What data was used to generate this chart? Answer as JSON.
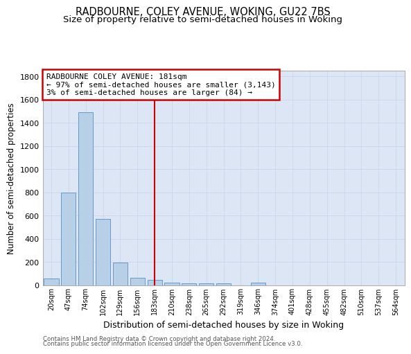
{
  "title": "RADBOURNE, COLEY AVENUE, WOKING, GU22 7BS",
  "subtitle": "Size of property relative to semi-detached houses in Woking",
  "xlabel": "Distribution of semi-detached houses by size in Woking",
  "ylabel": "Number of semi-detached properties",
  "footer1": "Contains HM Land Registry data © Crown copyright and database right 2024.",
  "footer2": "Contains public sector information licensed under the Open Government Licence v3.0.",
  "categories": [
    "20sqm",
    "47sqm",
    "74sqm",
    "102sqm",
    "129sqm",
    "156sqm",
    "183sqm",
    "210sqm",
    "238sqm",
    "265sqm",
    "292sqm",
    "319sqm",
    "346sqm",
    "374sqm",
    "401sqm",
    "428sqm",
    "455sqm",
    "482sqm",
    "510sqm",
    "537sqm",
    "564sqm"
  ],
  "values": [
    60,
    800,
    1490,
    575,
    195,
    65,
    45,
    25,
    20,
    20,
    20,
    0,
    25,
    0,
    0,
    0,
    0,
    0,
    0,
    0,
    0
  ],
  "bar_color": "#b8cfe8",
  "bar_edge_color": "#6699cc",
  "vline_x_index": 6,
  "vline_color": "#cc0000",
  "annotation_title": "RADBOURNE COLEY AVENUE: 181sqm",
  "annotation_line1": "← 97% of semi-detached houses are smaller (3,143)",
  "annotation_line2": "3% of semi-detached houses are larger (84) →",
  "annotation_box_color": "#ffffff",
  "annotation_box_edge": "#cc0000",
  "ylim": [
    0,
    1850
  ],
  "yticks": [
    0,
    200,
    400,
    600,
    800,
    1000,
    1200,
    1400,
    1600,
    1800
  ],
  "grid_color": "#ccd6e8",
  "bg_color": "#dce6f5",
  "title_fontsize": 10.5,
  "subtitle_fontsize": 9.5,
  "ylabel_fontsize": 8.5,
  "xlabel_fontsize": 9,
  "tick_fontsize": 8,
  "xtick_fontsize": 7,
  "footer_fontsize": 6.2,
  "annot_fontsize": 8
}
